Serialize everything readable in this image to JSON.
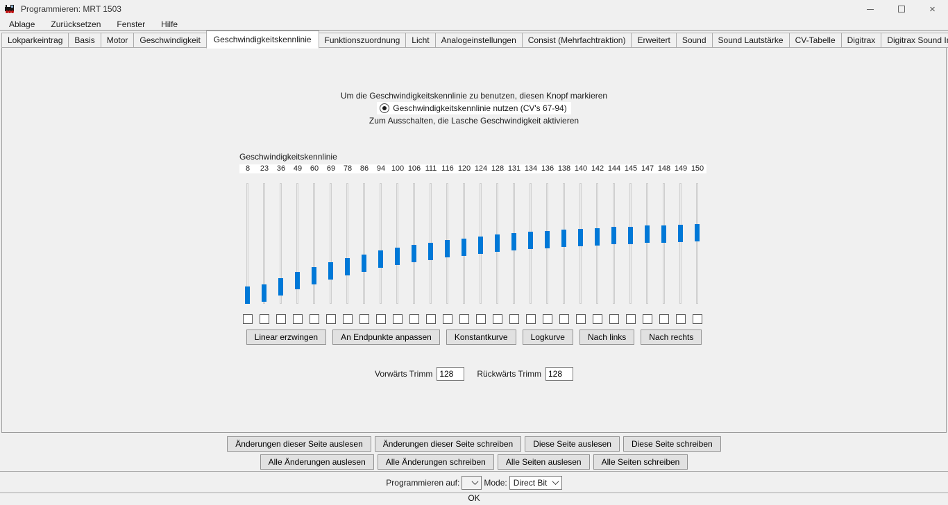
{
  "window": {
    "title": "Programmieren: MRT 1503"
  },
  "menu": {
    "items": [
      "Ablage",
      "Zurücksetzen",
      "Fenster",
      "Hilfe"
    ]
  },
  "tabs": {
    "active_index": 4,
    "items": [
      "Lokparkeintrag",
      "Basis",
      "Motor",
      "Geschwindigkeit",
      "Geschwindigkeitskennlinie",
      "Funktionszuordnung",
      "Licht",
      "Analogeinstellungen",
      "Consist (Mehrfachtraktion)",
      "Erweitert",
      "Sound",
      "Sound Lautstärke",
      "CV-Tabelle",
      "Digitrax",
      "Digitrax Sound Info"
    ]
  },
  "speed_panel": {
    "instruction_top": "Um die Geschwindigkeitskennlinie zu benutzen, diesen Knopf markieren",
    "radio_label": "Geschwindigkeitskennlinie nutzen (CV's 67-94)",
    "radio_selected": true,
    "instruction_bottom": "Zum Ausschalten, die Lasche Geschwindigkeit aktivieren",
    "curve_title": "Geschwindigkeitskennlinie",
    "sliders": {
      "values": [
        8,
        23,
        36,
        49,
        60,
        69,
        78,
        86,
        94,
        100,
        106,
        111,
        116,
        120,
        124,
        128,
        131,
        134,
        136,
        138,
        140,
        142,
        144,
        145,
        147,
        148,
        149,
        150
      ],
      "min": 0,
      "max": 255,
      "checkboxes_checked": false
    },
    "curve_buttons": [
      "Linear erzwingen",
      "An Endpunkte anpassen",
      "Konstantkurve",
      "Logkurve",
      "Nach links",
      "Nach rechts"
    ],
    "trim": {
      "forward_label": "Vorwärts Trimm",
      "forward_value": "128",
      "reverse_label": "Rückwärts Trimm",
      "reverse_value": "128"
    }
  },
  "bottom": {
    "page_buttons": [
      "Änderungen dieser Seite auslesen",
      "Änderungen dieser Seite schreiben",
      "Diese Seite auslesen",
      "Diese Seite schreiben"
    ],
    "all_buttons": [
      "Alle Änderungen auslesen",
      "Alle Änderungen schreiben",
      "Alle Seiten auslesen",
      "Alle Seiten schreiben"
    ],
    "program_on_label": "Programmieren auf:",
    "program_on_value": "",
    "mode_label": "Mode:",
    "mode_value": "Direct Bit",
    "status": "OK"
  },
  "colors": {
    "accent": "#0078d7",
    "panel_bg": "#f0f0f0"
  }
}
